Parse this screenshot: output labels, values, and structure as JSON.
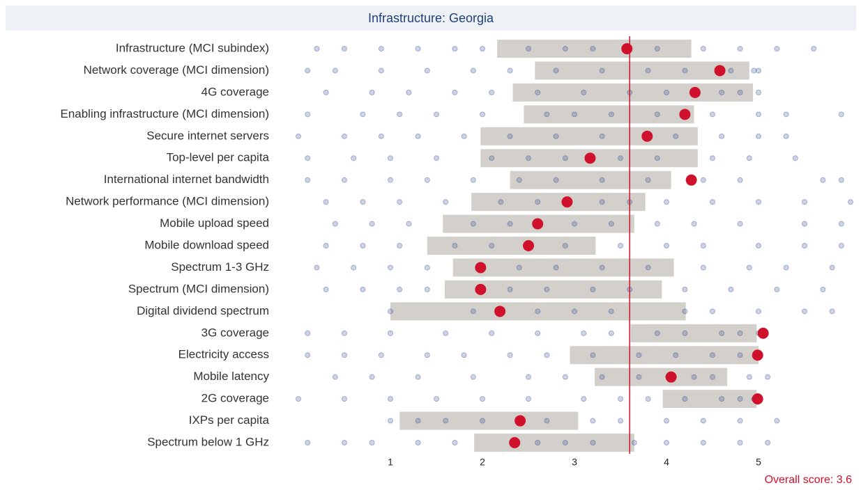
{
  "chart_data": {
    "type": "strip",
    "title": "Infrastructure: Georgia",
    "xlim": [
      0,
      6
    ],
    "xticks": [
      1,
      2,
      3,
      4,
      5
    ],
    "reference": {
      "value": 3.6,
      "label": "Overall score: 3.6",
      "color": "#d0112b"
    },
    "band_color": "#d3d0cc",
    "point_color": "#d0112b",
    "dot_color": "#1f3a8a",
    "rows": [
      {
        "label": "Infrastructure (MCI subindex)",
        "low": 2.16,
        "high": 4.27,
        "value": 3.57,
        "others": [
          0.2,
          0.5,
          0.9,
          1.3,
          1.7,
          2.0,
          2.5,
          2.9,
          3.2,
          3.9,
          4.4,
          4.8,
          5.2,
          5.6
        ]
      },
      {
        "label": "Network coverage (MCI dimension)",
        "low": 2.57,
        "high": 4.9,
        "value": 4.58,
        "others": [
          0.1,
          0.4,
          0.9,
          1.4,
          1.9,
          2.3,
          2.8,
          3.3,
          3.8,
          4.2,
          4.7,
          4.95,
          5.0
        ]
      },
      {
        "label": "4G coverage",
        "low": 2.33,
        "high": 4.94,
        "value": 4.31,
        "others": [
          0.3,
          0.8,
          1.2,
          1.7,
          2.1,
          2.6,
          3.1,
          3.6,
          4.0,
          4.6,
          4.8,
          5.0
        ]
      },
      {
        "label": "Enabling infrastructure (MCI dimension)",
        "low": 2.45,
        "high": 4.3,
        "value": 4.2,
        "others": [
          0.1,
          0.7,
          1.1,
          1.5,
          2.0,
          2.7,
          3.0,
          3.4,
          3.9,
          4.5,
          5.0,
          5.3,
          5.9
        ]
      },
      {
        "label": "Secure internet servers",
        "low": 1.98,
        "high": 4.34,
        "value": 3.79,
        "others": [
          0.0,
          0.5,
          0.9,
          1.3,
          1.8,
          2.3,
          2.8,
          3.3,
          4.1,
          4.6,
          5.0,
          5.3
        ]
      },
      {
        "label": "Top-level per capita",
        "low": 1.98,
        "high": 4.34,
        "value": 3.17,
        "others": [
          0.1,
          0.6,
          1.0,
          1.5,
          2.1,
          2.5,
          2.9,
          3.5,
          3.9,
          4.5,
          4.9,
          5.4
        ]
      },
      {
        "label": "International internet bandwidth",
        "low": 2.3,
        "high": 4.05,
        "value": 4.27,
        "others": [
          0.1,
          0.5,
          1.0,
          1.4,
          1.9,
          2.4,
          2.8,
          3.3,
          3.8,
          4.4,
          4.8,
          5.7,
          5.9
        ]
      },
      {
        "label": "Network performance (MCI dimension)",
        "low": 1.88,
        "high": 3.77,
        "value": 2.92,
        "others": [
          0.3,
          0.7,
          1.1,
          1.6,
          2.2,
          2.6,
          3.3,
          3.6,
          4.0,
          4.5,
          5.0,
          5.5,
          6.0
        ]
      },
      {
        "label": "Mobile upload speed",
        "low": 1.57,
        "high": 3.65,
        "value": 2.6,
        "others": [
          0.4,
          0.8,
          1.2,
          1.9,
          2.3,
          3.0,
          3.4,
          3.9,
          4.3,
          4.8,
          5.5,
          5.9
        ]
      },
      {
        "label": "Mobile download speed",
        "low": 1.4,
        "high": 3.23,
        "value": 2.5,
        "others": [
          0.3,
          0.7,
          1.1,
          1.7,
          2.1,
          2.9,
          3.5,
          4.0,
          4.4,
          5.0,
          5.5,
          5.9
        ]
      },
      {
        "label": "Spectrum 1-3 GHz",
        "low": 1.68,
        "high": 4.08,
        "value": 1.98,
        "others": [
          0.2,
          0.6,
          1.0,
          1.4,
          2.4,
          2.8,
          3.3,
          3.8,
          4.4,
          4.9,
          5.3,
          5.8
        ]
      },
      {
        "label": "Spectrum (MCI dimension)",
        "low": 1.59,
        "high": 3.95,
        "value": 1.98,
        "others": [
          0.3,
          0.7,
          1.1,
          1.4,
          2.3,
          2.7,
          3.2,
          3.6,
          4.2,
          4.7,
          5.2,
          5.7
        ]
      },
      {
        "label": "Digital dividend spectrum",
        "low": 1.0,
        "high": 4.21,
        "value": 2.19,
        "others": [
          1.0,
          1.9,
          2.6,
          3.0,
          3.4,
          4.2,
          4.5,
          5.0,
          5.5,
          5.8
        ]
      },
      {
        "label": "3G coverage",
        "low": 3.61,
        "high": 4.98,
        "value": 5.05,
        "others": [
          0.1,
          0.5,
          1.0,
          1.6,
          2.1,
          2.6,
          3.1,
          3.4,
          3.9,
          4.2,
          4.6,
          4.8,
          5.0
        ]
      },
      {
        "label": "Electricity access",
        "low": 2.95,
        "high": 5.0,
        "value": 4.99,
        "others": [
          0.1,
          0.5,
          0.9,
          1.4,
          1.8,
          2.3,
          2.7,
          3.2,
          3.7,
          4.1,
          4.5,
          4.8
        ]
      },
      {
        "label": "Mobile latency",
        "low": 3.22,
        "high": 4.66,
        "value": 4.05,
        "others": [
          0.4,
          0.8,
          1.3,
          1.9,
          2.5,
          2.9,
          3.3,
          3.7,
          4.3,
          4.5,
          4.9,
          5.1
        ]
      },
      {
        "label": "2G coverage",
        "low": 3.96,
        "high": 4.98,
        "value": 4.99,
        "others": [
          0.0,
          0.5,
          1.0,
          1.5,
          2.0,
          2.5,
          3.1,
          3.5,
          3.8,
          4.2,
          4.6,
          4.8,
          4.95
        ]
      },
      {
        "label": "IXPs per capita",
        "low": 1.1,
        "high": 3.04,
        "value": 2.41,
        "others": [
          1.0,
          1.3,
          1.6,
          2.0,
          2.7,
          3.2,
          3.5,
          4.0,
          4.4,
          4.8,
          5.2
        ]
      },
      {
        "label": "Spectrum below 1 GHz",
        "low": 1.91,
        "high": 3.65,
        "value": 2.35,
        "others": [
          0.1,
          0.5,
          0.8,
          1.3,
          1.7,
          2.6,
          2.9,
          3.2,
          3.65,
          4.0,
          4.4,
          4.8,
          5.1
        ]
      }
    ]
  }
}
